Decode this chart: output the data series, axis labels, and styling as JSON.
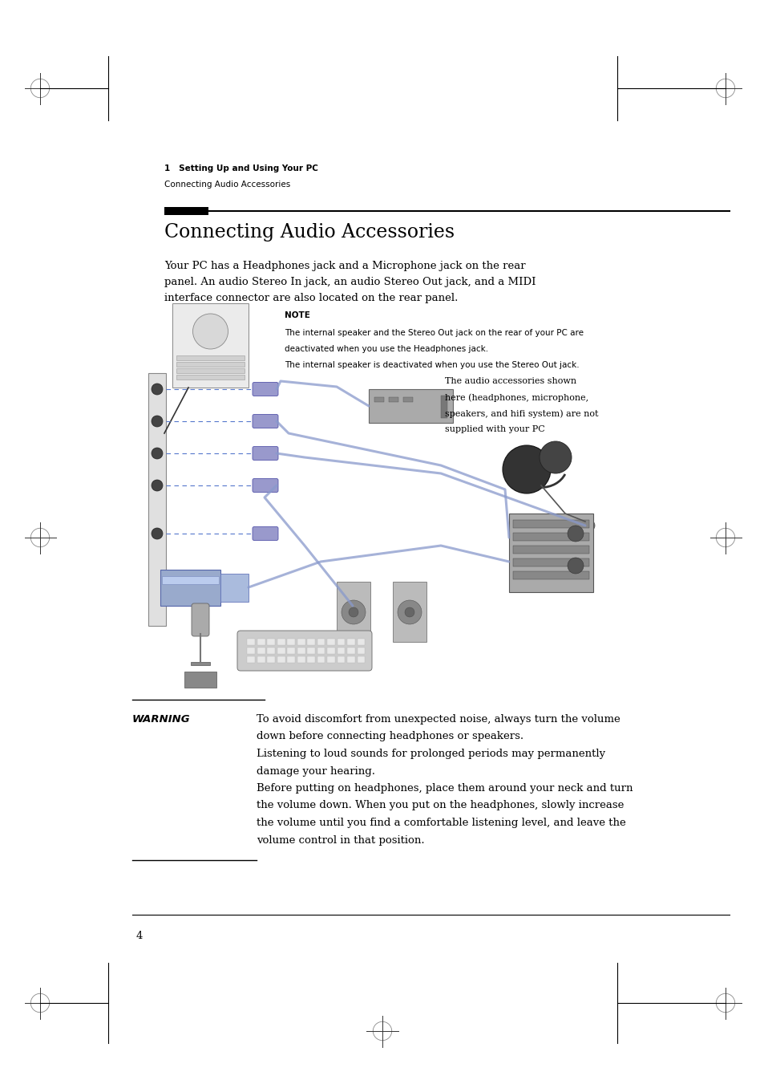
{
  "page_background": "#ffffff",
  "header_breadcrumb1": "1   Setting Up and Using Your PC",
  "header_breadcrumb2": "Connecting Audio Accessories",
  "section_title": "Connecting Audio Accessories",
  "body_line1": "Your PC has a Headphones jack and a Microphone jack on the rear",
  "body_line2": "panel. An audio Stereo In jack, an audio Stereo Out jack, and a MIDI",
  "body_line3": "interface connector are also located on the rear panel.",
  "note_label": "NOTE",
  "note_line1": "The internal speaker and the Stereo Out jack on the rear of your PC are",
  "note_line2": "deactivated when you use the Headphones jack.",
  "note_line3": "The internal speaker is deactivated when you use the Stereo Out jack.",
  "callout_line1": "The audio accessories shown",
  "callout_line2": "here (headphones, microphone,",
  "callout_line3": "speakers, and hifi system) are not",
  "callout_line4": "supplied with your PC",
  "warning_label": "WARNING",
  "warning_line1": "To avoid discomfort from unexpected noise, always turn the volume",
  "warning_line2": "down before connecting headphones or speakers.",
  "warning_line3": "Listening to loud sounds for prolonged periods may permanently",
  "warning_line4": "damage your hearing.",
  "warning_line5": "Before putting on headphones, place them around your neck and turn",
  "warning_line6": "the volume down. When you put on the headphones, slowly increase",
  "warning_line7": "the volume until you find a comfortable listening level, and leave the",
  "warning_line8": "volume control in that position.",
  "page_number": "4"
}
